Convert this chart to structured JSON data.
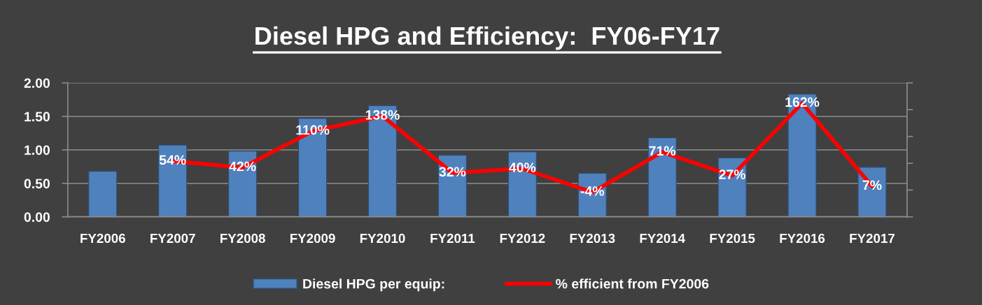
{
  "chart_data": {
    "type": "bar",
    "title": "Diesel HPG and Efficiency:  FY06-FY17",
    "categories": [
      "FY2006",
      "FY2007",
      "FY2008",
      "FY2009",
      "FY2010",
      "FY2011",
      "FY2012",
      "FY2013",
      "FY2014",
      "FY2015",
      "FY2016",
      "FY2017"
    ],
    "series": [
      {
        "name": "Diesel HPG per equip:",
        "color": "#4f81bd",
        "values": [
          0.68,
          1.07,
          0.98,
          1.47,
          1.66,
          0.92,
          0.97,
          0.65,
          1.18,
          0.88,
          1.83,
          0.74
        ]
      },
      {
        "name": "% efficient from FY2006",
        "type": "line",
        "axis": "y2",
        "color": "#ff0000",
        "values": [
          null,
          54,
          42,
          110,
          138,
          32,
          40,
          -4,
          71,
          27,
          162,
          7
        ],
        "value_labels": [
          null,
          "54%",
          "42%",
          "110%",
          "138%",
          "32%",
          "40%",
          "-4%",
          "71%",
          "27%",
          "162%",
          "7%"
        ]
      }
    ],
    "ylim": [
      0,
      2
    ],
    "yticks": [
      {
        "value": 0,
        "label": "0.00"
      },
      {
        "value": 0.5,
        "label": "0.50"
      },
      {
        "value": 1,
        "label": "1.00"
      },
      {
        "value": 1.5,
        "label": "1.50"
      },
      {
        "value": 2,
        "label": "2.00"
      }
    ],
    "y2lim": [
      -50,
      200
    ],
    "y2ticks": [
      {
        "value": -50,
        "label": null
      },
      {
        "value": 0,
        "label": null
      },
      {
        "value": 50,
        "label": null
      },
      {
        "value": 100,
        "label": null
      },
      {
        "value": 150,
        "label": null
      },
      {
        "value": 200,
        "label": null
      }
    ],
    "grid": "y",
    "legend": "bottom",
    "marker": "none",
    "line_style": "solid"
  }
}
